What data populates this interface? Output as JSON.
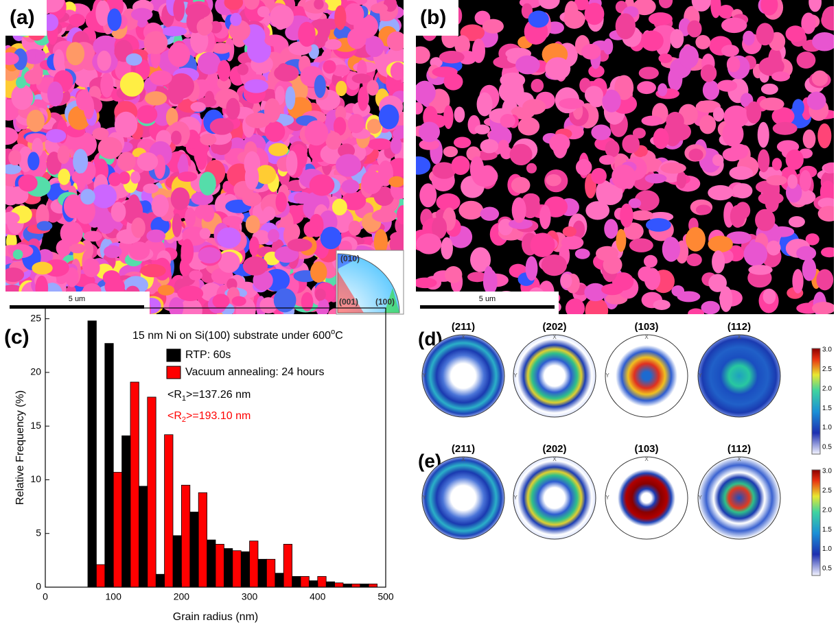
{
  "panels": {
    "a": {
      "label": "(a)",
      "scale_bar": "5 um",
      "ipf_labels": [
        "(010)",
        "(001)",
        "(100)"
      ]
    },
    "b": {
      "label": "(b)",
      "scale_bar": "5 um"
    },
    "d": {
      "label": "(d)",
      "poles": [
        "(211)",
        "(202)",
        "(103)",
        "(112)"
      ]
    },
    "e": {
      "label": "(e)",
      "poles": [
        "(211)",
        "(202)",
        "(103)",
        "(112)"
      ]
    },
    "pole_axis_labels": [
      "X",
      "Y"
    ],
    "colorbar_ticks": [
      "3.0",
      "2.5",
      "2.0",
      "1.5",
      "1.0",
      "0.5"
    ]
  },
  "chart_data": {
    "type": "histogram",
    "panel_label": "(c)",
    "xlabel": "Grain radius (nm)",
    "ylabel": "Relative Frequency (%)",
    "bins": [
      62.5,
      87.5,
      112.5,
      137.5,
      162.5,
      187.5,
      212.5,
      237.5,
      262.5,
      287.5,
      312.5,
      337.5,
      362.5,
      387.5,
      412.5,
      437.5,
      462.5,
      487.5
    ],
    "series": [
      {
        "name": "RTP: 60s",
        "color": "#000000",
        "values": [
          24.8,
          22.7,
          14.1,
          9.4,
          1.2,
          4.8,
          7.0,
          4.4,
          3.6,
          3.3,
          2.6,
          1.3,
          1.0,
          0.6,
          0.5,
          0.3,
          0.3
        ]
      },
      {
        "name": "Vacuum annealing: 24 hours",
        "color": "#ff0000",
        "values": [
          2.1,
          10.7,
          19.1,
          17.7,
          14.2,
          9.5,
          8.8,
          4.0,
          3.4,
          4.3,
          2.6,
          4.0,
          1.0,
          1.0,
          0.4,
          0.3,
          0.3
        ]
      }
    ],
    "xlim": [
      0,
      500
    ],
    "ylim": [
      0,
      26
    ],
    "xticks": [
      0,
      100,
      200,
      300,
      400,
      500
    ],
    "yticks": [
      0,
      5,
      10,
      15,
      20,
      25
    ],
    "legend": "upper center",
    "annotations": [
      {
        "parts": [
          "15 nm Ni on Si(100) substrate under 600",
          "o",
          "C"
        ],
        "color": "#000000"
      },
      {
        "parts": [
          "<R",
          "1",
          ">=137.26 nm"
        ],
        "color": "#000000"
      },
      {
        "parts": [
          "<R",
          "2",
          ">=193.10 nm"
        ],
        "color": "#ff0000"
      }
    ]
  }
}
